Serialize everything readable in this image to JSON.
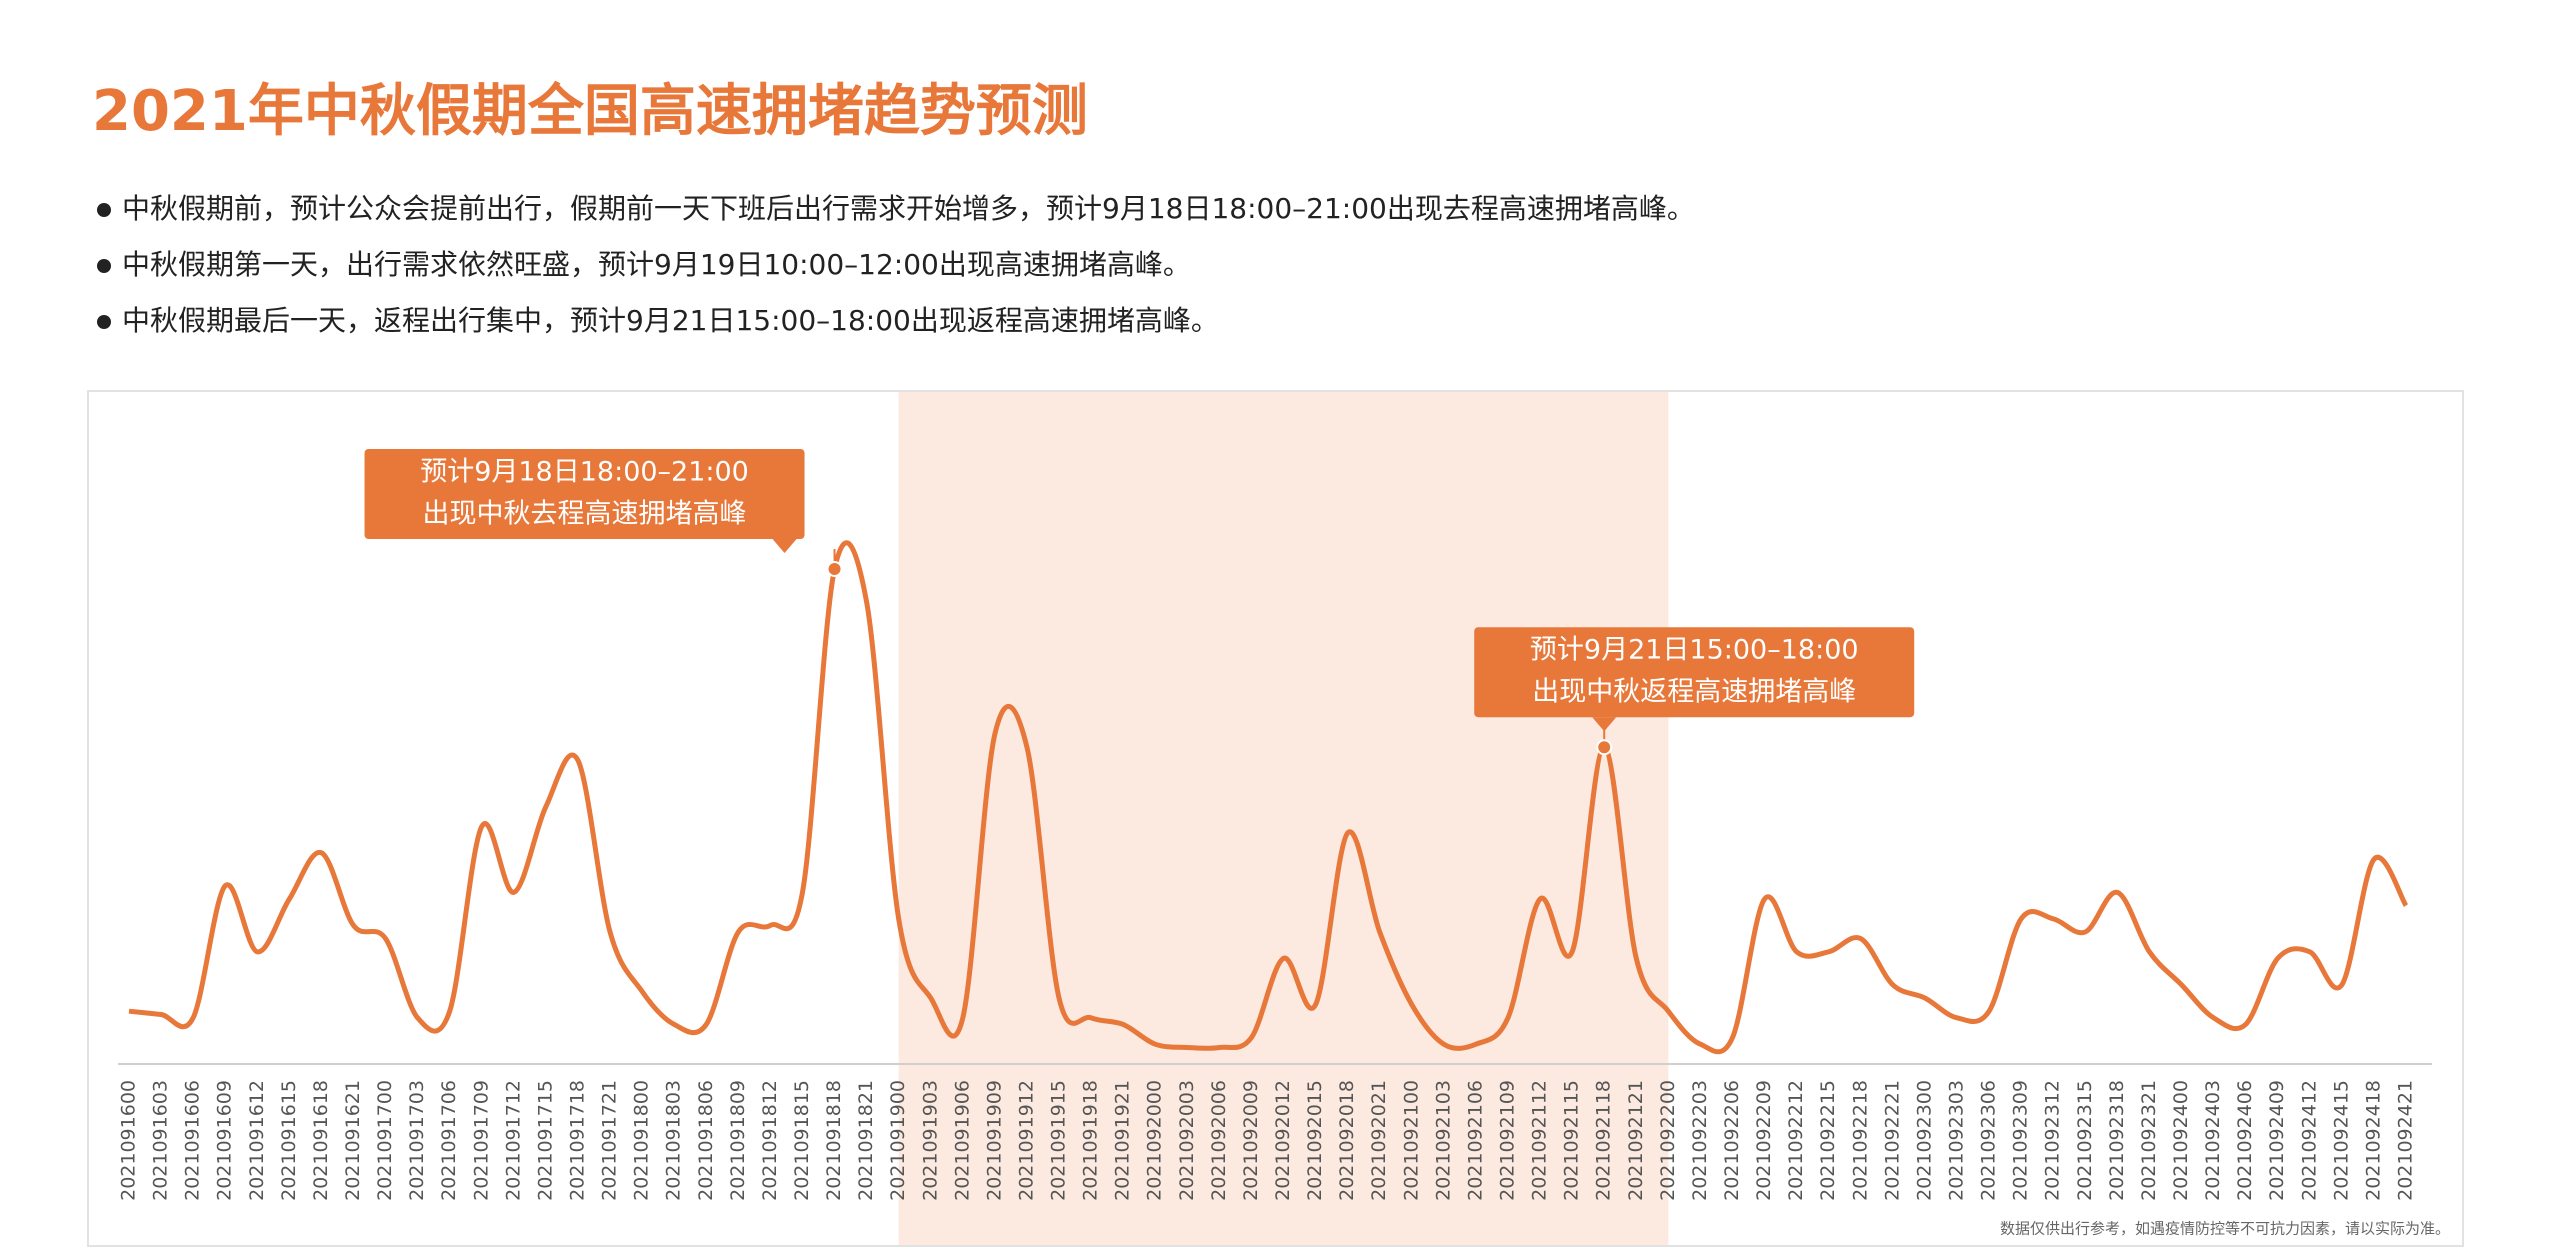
{
  "chart_data": {
    "type": "line",
    "title": "2021年中秋假期全国高速拥堵趋势预测",
    "notes": [
      "中秋假期前，预计公众会提前出行，假期前一天下班后出行需求开始增多，预计9月18日18:00–21:00出现去程高速拥堵高峰。",
      "中秋假期第一天，出行需求依然旺盛，预计9月19日10:00–12:00出现高速拥堵高峰。",
      "中秋假期最后一天，返程出行集中，预计9月21日15:00–18:00出现返程高速拥堵高峰。"
    ],
    "annotations": [
      [
        "预计9月18日18:00–21:00",
        "出现中秋去程高速拥堵高峰"
      ],
      [
        "预计9月21日15:00–18:00",
        "出现中秋返程高速拥堵高峰"
      ]
    ],
    "footnote": "数据仅供出行参考，如遇疫情防控等不可抗力因素，请以实际为准。",
    "categories": [
      "2021091600",
      "2021091603",
      "2021091606",
      "2021091609",
      "2021091612",
      "2021091615",
      "2021091618",
      "2021091621",
      "2021091700",
      "2021091703",
      "2021091706",
      "2021091709",
      "2021091712",
      "2021091715",
      "2021091718",
      "2021091721",
      "2021091800",
      "2021091803",
      "2021091806",
      "2021091809",
      "2021091812",
      "2021091815",
      "2021091818",
      "2021091821",
      "2021091900",
      "2021091903",
      "2021091906",
      "2021091909",
      "2021091912",
      "2021091915",
      "2021091918",
      "2021091921",
      "2021092000",
      "2021092003",
      "2021092006",
      "2021092009",
      "2021092012",
      "2021092015",
      "2021092018",
      "2021092021",
      "2021092100",
      "2021092103",
      "2021092106",
      "2021092109",
      "2021092112",
      "2021092115",
      "2021092118",
      "2021092121",
      "2021092200",
      "2021092203",
      "2021092206",
      "2021092209",
      "2021092212",
      "2021092215",
      "2021092218",
      "2021092221",
      "2021092300",
      "2021092303",
      "2021092306",
      "2021092309",
      "2021092312",
      "2021092315",
      "2021092318",
      "2021092321",
      "2021092400",
      "2021092403",
      "2021092406",
      "2021092409",
      "2021092412",
      "2021092415",
      "2021092418",
      "2021092421"
    ],
    "values": [
      8,
      7.5,
      7,
      27,
      17,
      25,
      32,
      21,
      19,
      7,
      8,
      36,
      26,
      39,
      46,
      20,
      11,
      6,
      6,
      20,
      21,
      26,
      75,
      70,
      22,
      10,
      7,
      50,
      48,
      10,
      7,
      6,
      3,
      2.5,
      2.5,
      4,
      16,
      9,
      35,
      20,
      9,
      3,
      3,
      7,
      25,
      17,
      48,
      16,
      8,
      3,
      4,
      25,
      17,
      17,
      19,
      12,
      10,
      7,
      8,
      22,
      22,
      20,
      26,
      17,
      12,
      7,
      6,
      16,
      17,
      12,
      31,
      24
    ],
    "color": "#e8773a",
    "ylim": [
      0,
      100
    ]
  }
}
